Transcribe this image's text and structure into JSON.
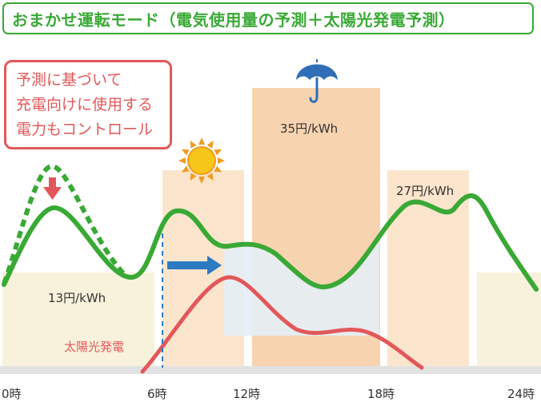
{
  "title": "おまかせ運転モード（電気使用量の予測＋太陽光発電予測）",
  "callout": {
    "lines": [
      "予測に基づいて",
      "充電向けに使用する",
      "電力もコントロール"
    ]
  },
  "price_labels": {
    "low": "13円/kWh",
    "high": "35円/kWh",
    "mid": "27円/kWh"
  },
  "solar_label": "太陽光発電",
  "time_axis": [
    "0時",
    "6時",
    "12時",
    "18時",
    "24時"
  ],
  "icons": {
    "sun": "sun-icon",
    "umbrella": "umbrella-icon",
    "down_arrow": "down-arrow-icon",
    "right_arrow": "right-arrow-icon"
  },
  "colors": {
    "usage_line": "#39a935",
    "solar_line": "#e2585a",
    "low_rate": "#f8f2dc",
    "mid_rate": "#fbe5cc",
    "high_rate": "#f8d3b0",
    "shift_area": "#e4eef6",
    "arrow_blue": "#2b7ac2"
  }
}
